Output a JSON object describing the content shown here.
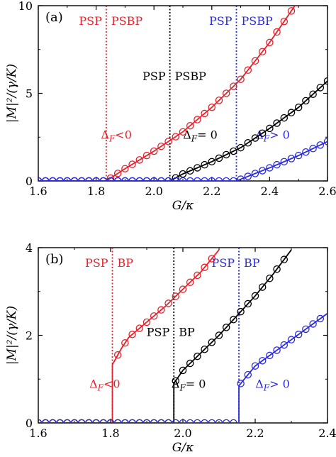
{
  "colors": {
    "red": "#e8202a",
    "black": "#000000",
    "blue": "#2a2ae0"
  },
  "chart_data": [
    {
      "type": "line",
      "panel_label": "(a)",
      "xlabel": "G/κ",
      "ylabel": "|M|²/(γ/K)",
      "xlim": [
        1.6,
        2.6
      ],
      "ylim": [
        0,
        10
      ],
      "xticks": [
        "1.6",
        "1.8",
        "2.0",
        "2.2",
        "2.4",
        "2.6"
      ],
      "yticks": [
        "0",
        "5",
        "10"
      ],
      "thresholds": [
        {
          "x": 1.835,
          "color": "red",
          "left": "PSP",
          "right": "PSBP"
        },
        {
          "x": 2.055,
          "color": "black",
          "left": "PSP",
          "right": "PSBP"
        },
        {
          "x": 2.285,
          "color": "blue",
          "left": "PSP",
          "right": "PSBP"
        }
      ],
      "annotations": [
        {
          "text": "ΔF<0",
          "color": "red"
        },
        {
          "text": "ΔF= 0",
          "color": "black"
        },
        {
          "text": "ΔF> 0",
          "color": "blue"
        }
      ],
      "series": [
        {
          "color": "red",
          "x": [
            1.6,
            1.835,
            1.9,
            2.0,
            2.1,
            2.2,
            2.3,
            2.4,
            2.5
          ],
          "y": [
            0,
            0,
            0.7,
            1.7,
            2.8,
            4.2,
            5.8,
            7.9,
            10.3
          ]
        },
        {
          "color": "black",
          "x": [
            1.6,
            2.055,
            2.1,
            2.2,
            2.3,
            2.4,
            2.5,
            2.6
          ],
          "y": [
            0,
            0,
            0.4,
            1.1,
            1.9,
            3.0,
            4.2,
            5.7
          ]
        },
        {
          "color": "blue",
          "x": [
            1.6,
            2.285,
            2.3,
            2.4,
            2.5,
            2.6
          ],
          "y": [
            0,
            0,
            0.1,
            0.75,
            1.45,
            2.25
          ]
        }
      ]
    },
    {
      "type": "line",
      "panel_label": "(b)",
      "xlabel": "G/κ",
      "ylabel": "|M|²/(γ/K)",
      "xlim": [
        1.6,
        2.4
      ],
      "ylim": [
        0,
        4
      ],
      "xticks": [
        "1.6",
        "1.8",
        "2.0",
        "2.2",
        "2.4"
      ],
      "yticks": [
        "0",
        "2",
        "4"
      ],
      "thresholds": [
        {
          "x": 1.805,
          "color": "red",
          "left": "PSP",
          "right": "BP"
        },
        {
          "x": 1.975,
          "color": "black",
          "left": "PSP",
          "right": "BP"
        },
        {
          "x": 2.155,
          "color": "blue",
          "left": "PSP",
          "right": "BP"
        }
      ],
      "annotations": [
        {
          "text": "ΔF<0",
          "color": "red"
        },
        {
          "text": "ΔF= 0",
          "color": "black"
        },
        {
          "text": "ΔF> 0",
          "color": "blue"
        }
      ],
      "series": [
        {
          "color": "red",
          "x": [
            1.6,
            1.805,
            1.805,
            1.83,
            1.85,
            1.9,
            1.95,
            2.0,
            2.05,
            2.1
          ],
          "y": [
            0,
            0,
            1.33,
            1.7,
            1.95,
            2.3,
            2.65,
            3.05,
            3.45,
            3.95
          ]
        },
        {
          "color": "black",
          "x": [
            1.6,
            1.975,
            1.975,
            2.0,
            2.05,
            2.1,
            2.15,
            2.2,
            2.25,
            2.3
          ],
          "y": [
            0,
            0,
            0.9,
            1.2,
            1.6,
            2.0,
            2.45,
            2.9,
            3.4,
            3.95
          ]
        },
        {
          "color": "blue",
          "x": [
            1.6,
            2.155,
            2.155,
            2.18,
            2.2,
            2.25,
            2.3,
            2.35,
            2.4
          ],
          "y": [
            0,
            0,
            0.85,
            1.1,
            1.3,
            1.6,
            1.9,
            2.2,
            2.5
          ]
        }
      ]
    }
  ]
}
